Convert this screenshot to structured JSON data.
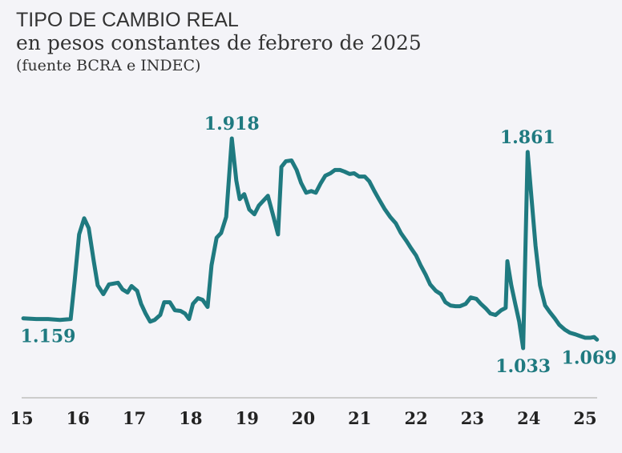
{
  "chart_data": {
    "type": "line",
    "title": "TIPO DE CAMBIO REAL",
    "subtitle": "en pesos constantes de febrero de 2025",
    "source": "(fuente BCRA e INDEC)",
    "color": "#1f7a80",
    "xlim": [
      15,
      25.25
    ],
    "xticks": [
      15,
      16,
      17,
      18,
      19,
      20,
      21,
      22,
      23,
      24,
      25
    ],
    "x": [
      15.03,
      15.26,
      15.47,
      15.68,
      15.87,
      15.94,
      16.02,
      16.11,
      16.19,
      16.28,
      16.35,
      16.45,
      16.55,
      16.71,
      16.79,
      16.88,
      16.95,
      17.05,
      17.12,
      17.2,
      17.28,
      17.36,
      17.46,
      17.53,
      17.63,
      17.72,
      17.82,
      17.9,
      17.97,
      18.04,
      18.13,
      18.21,
      18.3,
      18.37,
      18.46,
      18.54,
      18.63,
      18.73,
      18.81,
      18.87,
      18.95,
      19.04,
      19.13,
      19.21,
      19.37,
      19.47,
      19.55,
      19.61,
      19.69,
      19.79,
      19.88,
      19.96,
      20.05,
      20.14,
      20.22,
      20.31,
      20.39,
      20.48,
      20.56,
      20.65,
      20.73,
      20.82,
      20.9,
      20.99,
      21.09,
      21.17,
      21.26,
      21.34,
      21.44,
      21.54,
      21.64,
      21.73,
      21.83,
      21.91,
      22.0,
      22.08,
      22.17,
      22.25,
      22.35,
      22.44,
      22.52,
      22.61,
      22.7,
      22.78,
      22.88,
      22.97,
      23.07,
      23.15,
      23.24,
      23.32,
      23.41,
      23.51,
      23.59,
      23.62,
      23.69,
      23.76,
      23.83,
      23.9,
      23.98,
      24.05,
      24.12,
      24.2,
      24.29,
      24.37,
      24.46,
      24.54,
      24.64,
      24.73,
      24.83,
      24.91,
      25.0,
      25.1,
      25.16,
      25.21
    ],
    "values": [
      1159,
      1156,
      1156,
      1152,
      1156,
      1315,
      1513,
      1581,
      1540,
      1400,
      1298,
      1261,
      1302,
      1309,
      1281,
      1268,
      1295,
      1275,
      1220,
      1179,
      1145,
      1152,
      1173,
      1227,
      1227,
      1193,
      1190,
      1179,
      1156,
      1220,
      1244,
      1237,
      1207,
      1383,
      1499,
      1519,
      1587,
      1918,
      1740,
      1662,
      1683,
      1618,
      1598,
      1635,
      1676,
      1587,
      1513,
      1798,
      1822,
      1825,
      1785,
      1730,
      1689,
      1696,
      1689,
      1730,
      1761,
      1771,
      1785,
      1785,
      1778,
      1768,
      1771,
      1757,
      1757,
      1737,
      1696,
      1662,
      1621,
      1587,
      1560,
      1519,
      1485,
      1455,
      1424,
      1383,
      1343,
      1302,
      1275,
      1261,
      1227,
      1213,
      1210,
      1210,
      1220,
      1247,
      1241,
      1220,
      1200,
      1179,
      1173,
      1193,
      1203,
      1400,
      1298,
      1220,
      1145,
      1033,
      1861,
      1662,
      1465,
      1298,
      1213,
      1186,
      1159,
      1132,
      1111,
      1098,
      1091,
      1084,
      1077,
      1077,
      1080,
      1069
    ],
    "value_labels": [
      "1.159",
      null,
      null,
      null,
      null,
      null,
      null,
      null,
      null,
      null,
      null,
      null,
      null,
      null,
      null,
      null,
      null,
      null,
      null,
      null,
      null,
      null,
      null,
      null,
      null,
      null,
      null,
      null,
      null,
      null,
      null,
      null,
      null,
      null,
      null,
      null,
      null,
      "1.918",
      null,
      null,
      null,
      null,
      null,
      null,
      null,
      null,
      null,
      null,
      null,
      null,
      null,
      null,
      null,
      null,
      null,
      null,
      null,
      null,
      null,
      null,
      null,
      null,
      null,
      null,
      null,
      null,
      null,
      null,
      null,
      null,
      null,
      null,
      null,
      null,
      null,
      null,
      null,
      null,
      null,
      null,
      null,
      null,
      null,
      null,
      null,
      null,
      null,
      null,
      null,
      null,
      null,
      null,
      null,
      null,
      null,
      null,
      null,
      "1.033",
      "1.861",
      null,
      null,
      null,
      null,
      null,
      null,
      null,
      null,
      null,
      null,
      null,
      null,
      null,
      null,
      "1.069"
    ]
  }
}
